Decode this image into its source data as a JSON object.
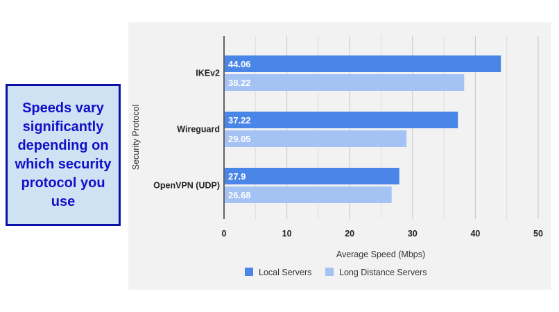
{
  "callout": {
    "text": "Speeds vary significantly depending on which security protocol you use"
  },
  "colors": {
    "local": "#4a86e8",
    "long": "#a4c2f4",
    "callout_bg": "#cfe2f3",
    "callout_border": "#0b10a8",
    "callout_text": "#1010c8"
  },
  "chart_data": {
    "type": "bar",
    "orientation": "horizontal",
    "title": "",
    "xlabel": "Average Speed (Mbps)",
    "ylabel": "Security Protocol",
    "categories": [
      "IKEv2",
      "Wireguard",
      "OpenVPN (UDP)"
    ],
    "series": [
      {
        "name": "Local Servers",
        "values": [
          44.06,
          37.22,
          27.9
        ]
      },
      {
        "name": "Long Distance Servers",
        "values": [
          38.22,
          29.05,
          26.68
        ]
      }
    ],
    "xlim": [
      0,
      50
    ],
    "xticks": [
      0,
      10,
      20,
      30,
      40,
      50
    ],
    "grid": "vertical",
    "legend": "bottom"
  }
}
